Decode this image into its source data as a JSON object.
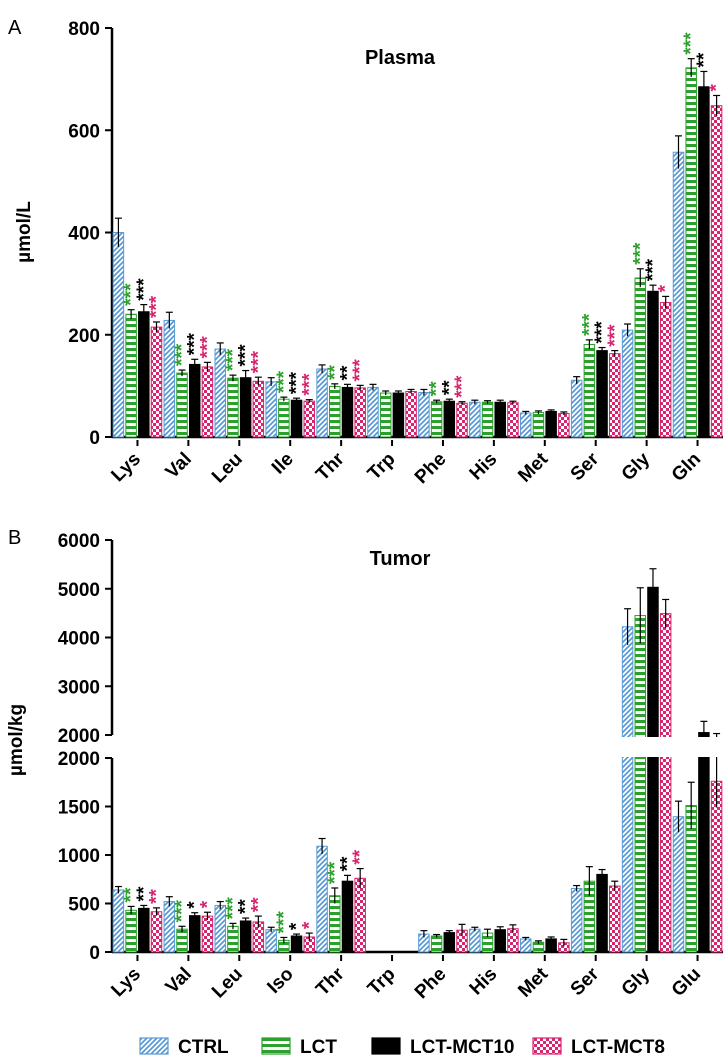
{
  "legend": [
    {
      "name": "CTRL",
      "pattern": "diag",
      "color": "#5b9bd5"
    },
    {
      "name": "LCT",
      "pattern": "hstripe",
      "color": "#2ca02c"
    },
    {
      "name": "LCT-MCT10",
      "pattern": "solid",
      "color": "#000000"
    },
    {
      "name": "LCT-MCT8",
      "pattern": "check",
      "color": "#d6246e"
    }
  ],
  "sig_colors": [
    "#2ca02c",
    "#000000",
    "#d6246e"
  ],
  "chart_data": [
    {
      "panel_label": "A",
      "type": "bar",
      "title": "Plasma",
      "ylabel": "µmol/L",
      "ylim": [
        0,
        800
      ],
      "yticks": [
        "0",
        "200",
        "400",
        "600",
        "800"
      ],
      "categories": [
        "Lys",
        "Val",
        "Leu",
        "Ile",
        "Thr",
        "Trp",
        "Phe",
        "His",
        "Met",
        "Ser",
        "Gly",
        "Gln"
      ],
      "series": [
        {
          "name": "CTRL",
          "values": [
            400,
            228,
            172,
            108,
            133,
            97,
            87,
            68,
            47,
            111,
            209,
            557
          ],
          "errors": [
            28,
            16,
            12,
            8,
            8,
            6,
            6,
            4,
            3,
            7,
            12,
            32
          ]
        },
        {
          "name": "LCT",
          "values": [
            240,
            125,
            115,
            74,
            99,
            86,
            69,
            68,
            48,
            181,
            311,
            722
          ],
          "errors": [
            9,
            6,
            6,
            4,
            5,
            4,
            3,
            3,
            3,
            9,
            18,
            18
          ]
        },
        {
          "name": "LCT-MCT10",
          "values": [
            245,
            142,
            116,
            72,
            97,
            86,
            70,
            68,
            50,
            169,
            285,
            685
          ],
          "errors": [
            14,
            10,
            14,
            4,
            6,
            4,
            4,
            4,
            3,
            6,
            12,
            30
          ]
        },
        {
          "name": "LCT-MCT8",
          "values": [
            215,
            137,
            109,
            70,
            96,
            89,
            66,
            67,
            46,
            163,
            263,
            648
          ],
          "errors": [
            10,
            9,
            8,
            3,
            5,
            4,
            3,
            3,
            3,
            6,
            12,
            20
          ]
        }
      ],
      "significance": [
        {
          "category": "Lys",
          "marks": [
            "***",
            "***",
            "***"
          ]
        },
        {
          "category": "Val",
          "marks": [
            "***",
            "***",
            "***"
          ]
        },
        {
          "category": "Leu",
          "marks": [
            "***",
            "***",
            "***"
          ]
        },
        {
          "category": "Ile",
          "marks": [
            "***",
            "***",
            "***"
          ]
        },
        {
          "category": "Thr",
          "marks": [
            "**",
            "**",
            "***"
          ]
        },
        {
          "category": "Phe",
          "marks": [
            "**",
            "**",
            "***"
          ]
        },
        {
          "category": "Ser",
          "marks": [
            "***",
            "***",
            "***"
          ]
        },
        {
          "category": "Gly",
          "marks": [
            "***",
            "***",
            "*"
          ]
        },
        {
          "category": "Gln",
          "marks": [
            "***",
            "**",
            "*"
          ]
        }
      ]
    },
    {
      "panel_label": "B",
      "type": "bar",
      "title": "Tumor",
      "ylabel": "µmol/kg",
      "y_axis_break": true,
      "ylim_lower": [
        0,
        2000
      ],
      "ylim_upper": [
        2000,
        6000
      ],
      "yticks_lower": [
        "0",
        "500",
        "1000",
        "1500",
        "2000"
      ],
      "yticks_upper": [
        "2000",
        "3000",
        "4000",
        "5000",
        "6000"
      ],
      "categories": [
        "Lys",
        "Val",
        "Leu",
        "Iso",
        "Thr",
        "Trp",
        "Phe",
        "His",
        "Met",
        "Ser",
        "Gly",
        "Glu"
      ],
      "series": [
        {
          "name": "CTRL",
          "values": [
            640,
            520,
            480,
            230,
            1090,
            null,
            185,
            235,
            135,
            655,
            4220,
            1395
          ],
          "errors": [
            35,
            50,
            40,
            25,
            80,
            null,
            35,
            20,
            15,
            30,
            370,
            160
          ]
        },
        {
          "name": "LCT",
          "values": [
            430,
            235,
            265,
            120,
            580,
            null,
            165,
            195,
            100,
            730,
            4450,
            1510
          ],
          "errors": [
            40,
            30,
            30,
            30,
            80,
            null,
            15,
            40,
            15,
            150,
            570,
            240
          ]
        },
        {
          "name": "LCT-MCT10",
          "values": [
            450,
            375,
            320,
            165,
            730,
            null,
            200,
            230,
            135,
            800,
            5030,
            2050
          ],
          "errors": [
            30,
            30,
            30,
            20,
            60,
            null,
            20,
            30,
            20,
            50,
            380,
            230
          ]
        },
        {
          "name": "LCT-MCT8",
          "values": [
            415,
            370,
            310,
            155,
            760,
            null,
            225,
            240,
            95,
            680,
            4490,
            1760
          ],
          "errors": [
            40,
            40,
            60,
            40,
            100,
            null,
            60,
            40,
            35,
            50,
            290,
            270
          ]
        }
      ],
      "significance": [
        {
          "category": "Lys",
          "marks": [
            "**",
            "**",
            "**"
          ]
        },
        {
          "category": "Val",
          "marks": [
            "***",
            "*",
            "*"
          ]
        },
        {
          "category": "Leu",
          "marks": [
            "***",
            "**",
            "**"
          ]
        },
        {
          "category": "Iso",
          "marks": [
            "***",
            "*",
            "*"
          ]
        },
        {
          "category": "Thr",
          "marks": [
            "***",
            "**",
            "**"
          ]
        }
      ]
    }
  ]
}
